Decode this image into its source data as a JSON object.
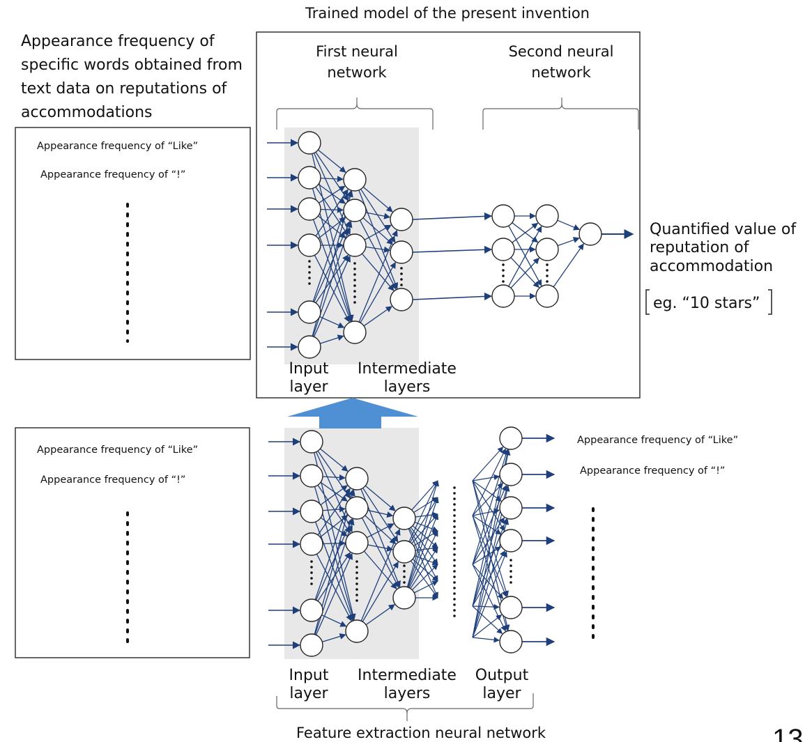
{
  "title_top": "Trained model of the present invention",
  "left_heading": [
    "Appearance frequency of",
    "specific words obtained from",
    "text data on reputations of",
    "accommodations"
  ],
  "first_nn_label": [
    "First neural",
    "network"
  ],
  "second_nn_label": [
    "Second neural",
    "network"
  ],
  "input_box": {
    "like": "Appearance frequency of “Like”",
    "excl": "Appearance frequency of “!”"
  },
  "output_text": [
    "Quantified value of",
    "reputation of",
    "accommodation"
  ],
  "example_text": "eg. “10 stars”",
  "top_layer_labels": {
    "input": [
      "Input",
      "layer"
    ],
    "intermediate": [
      "Intermediate",
      "layers"
    ]
  },
  "bottom_box": {
    "like": "Appearance frequency of “Like”",
    "excl": "Appearance frequency of “!”"
  },
  "bottom_outputs": {
    "like": "Appearance frequency of “Like”",
    "excl": "Appearance frequency of “!”"
  },
  "bottom_layer_labels": {
    "input": [
      "Input",
      "layer"
    ],
    "intermediate": [
      "Intermediate",
      "layers"
    ],
    "output": [
      "Output",
      "layer"
    ]
  },
  "bottom_caption": "Feature extraction neural network",
  "page_number": "13",
  "colors": {
    "arrow": "#1f3f7a",
    "up_arrow": "#4f8fd3",
    "shade": "#e8e8e8"
  }
}
